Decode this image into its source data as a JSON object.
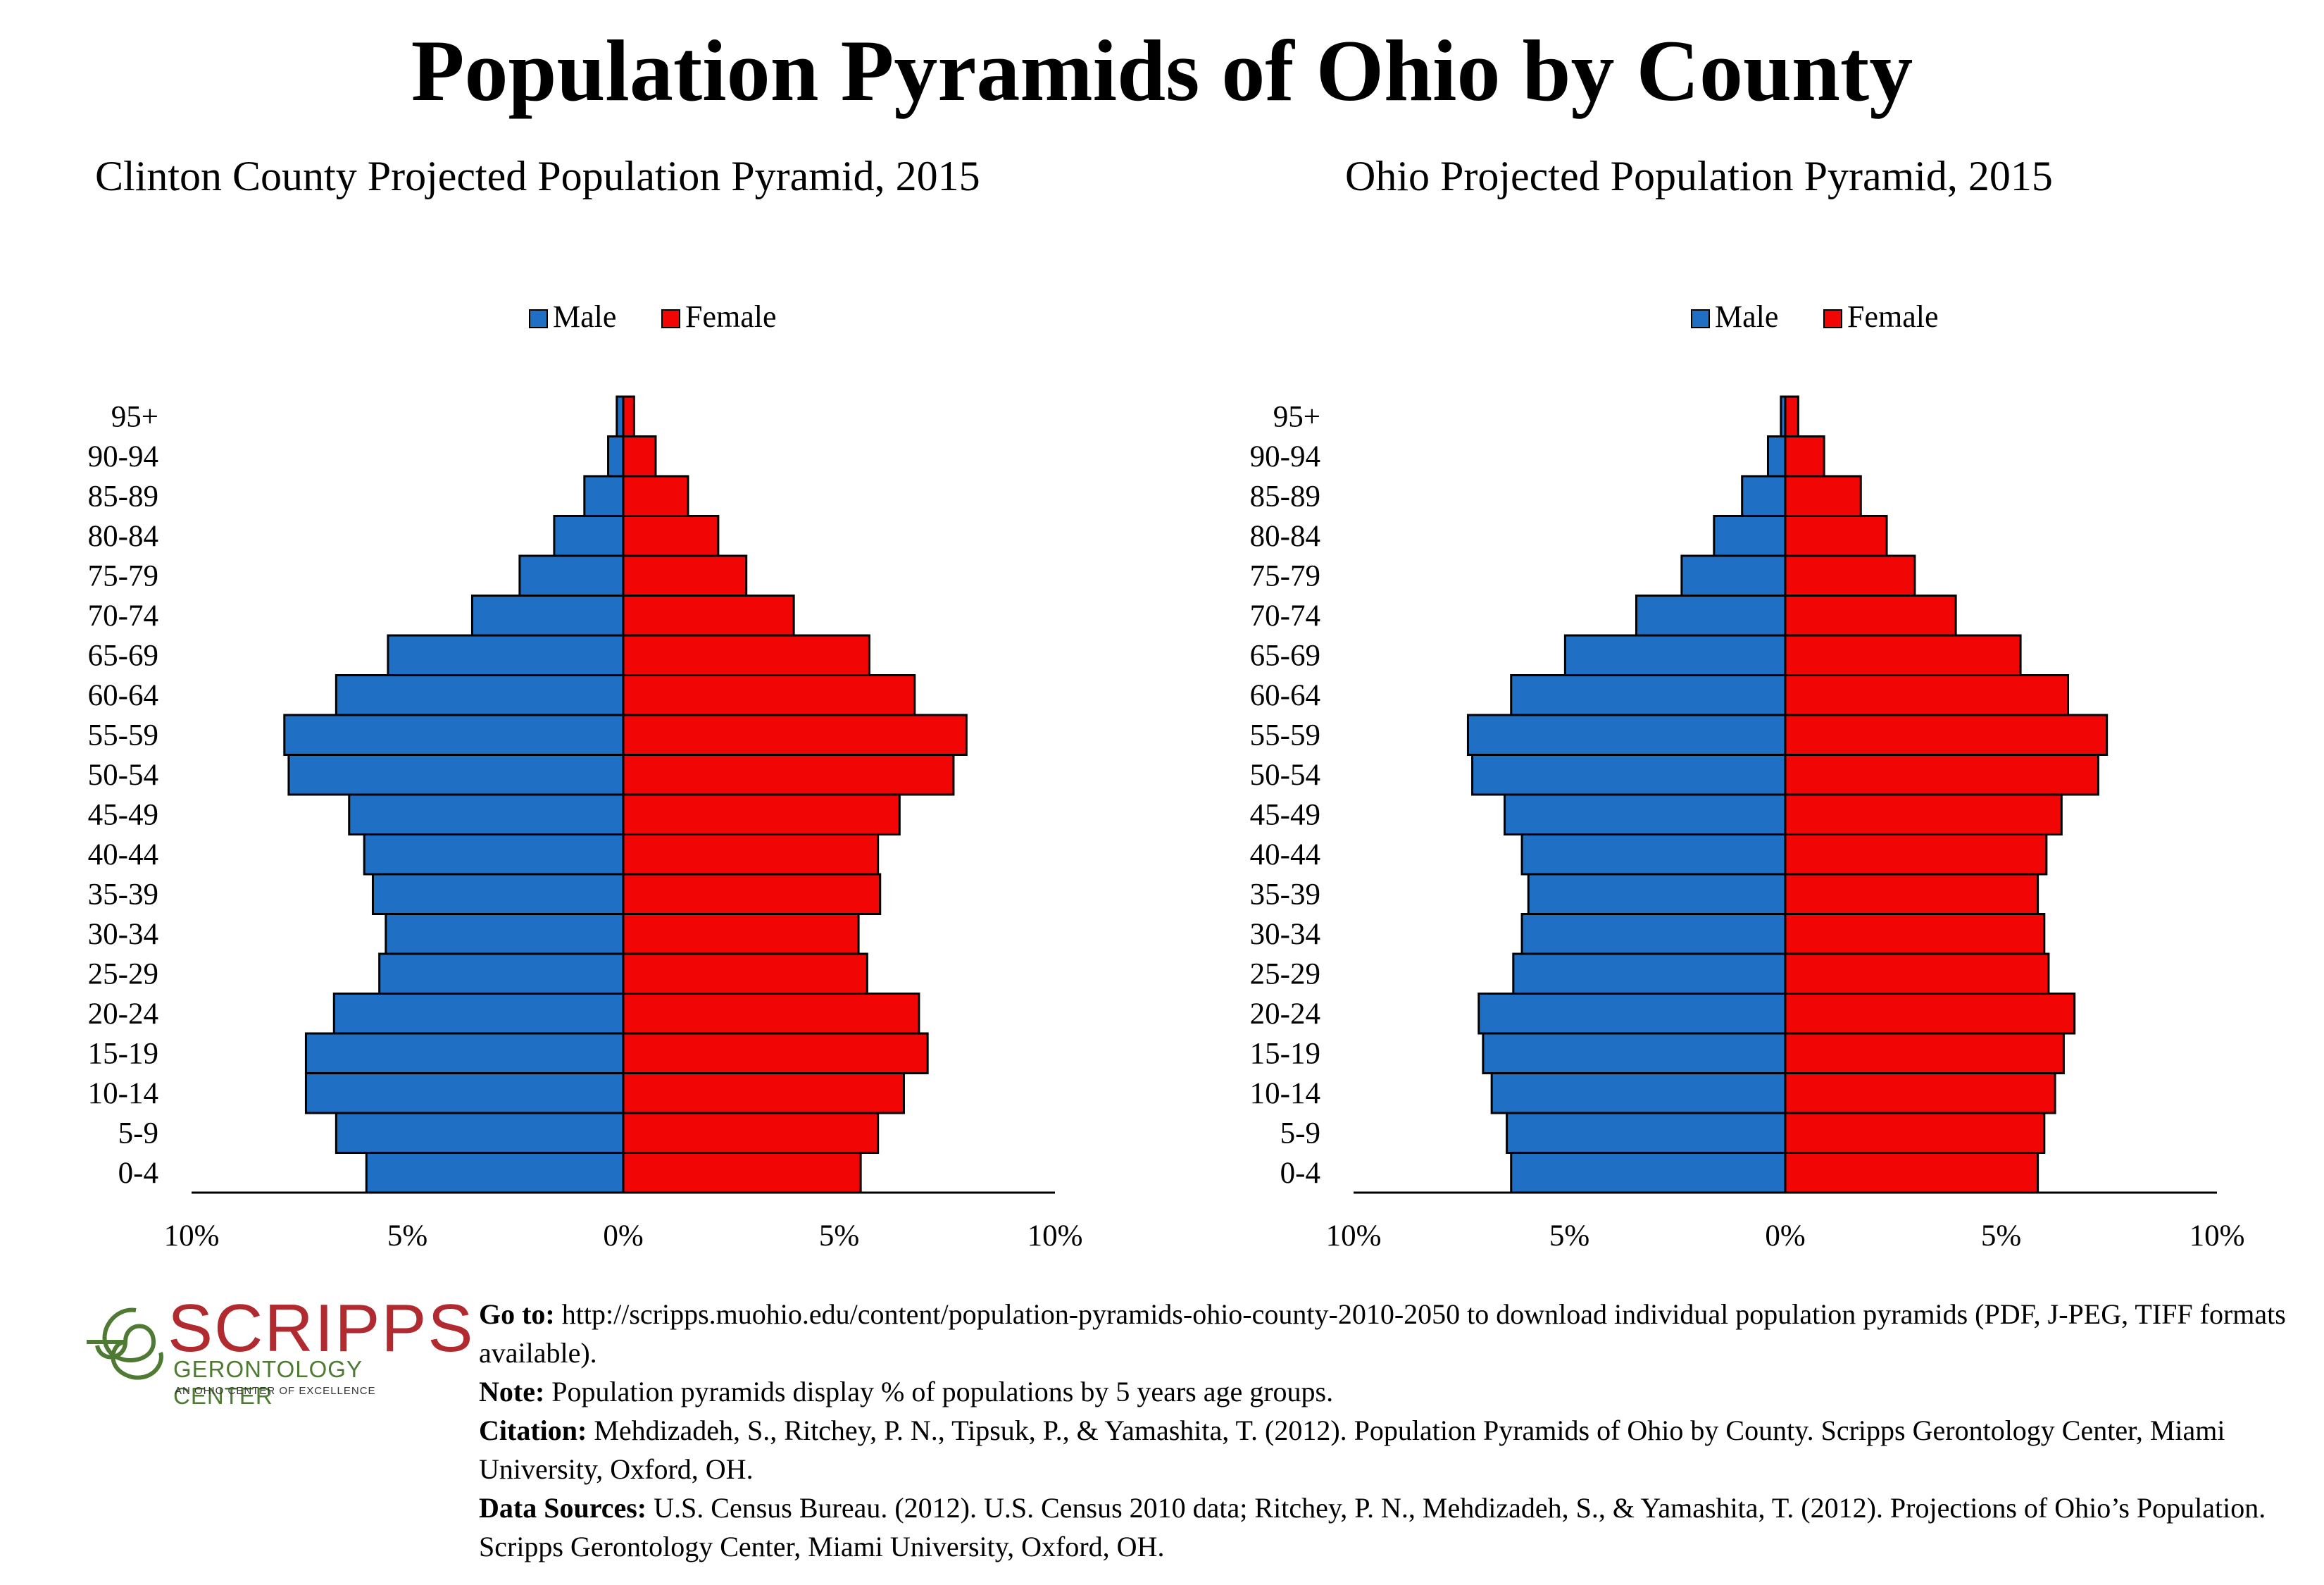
{
  "title": "Population Pyramids of Ohio by County",
  "legend": {
    "male": "Male",
    "female": "Female"
  },
  "colors": {
    "male": "#1f6fc5",
    "female": "#f20505",
    "outline": "#000000"
  },
  "x_tick_labels": [
    "10%",
    "5%",
    "0%",
    "5%",
    "10%"
  ],
  "chart_data": [
    {
      "type": "bar",
      "title": "Clinton County Projected Population Pyramid, 2015",
      "categories": [
        "95+",
        "90-94",
        "85-89",
        "80-84",
        "75-79",
        "70-74",
        "65-69",
        "60-64",
        "55-59",
        "50-54",
        "45-49",
        "40-44",
        "35-39",
        "30-34",
        "25-29",
        "20-24",
        "15-19",
        "10-14",
        "5-9",
        "0-4"
      ],
      "series": [
        {
          "name": "Male",
          "values": [
            0.15,
            0.35,
            0.9,
            1.6,
            2.4,
            3.5,
            5.45,
            6.65,
            7.85,
            7.75,
            6.35,
            6.0,
            5.8,
            5.5,
            5.65,
            6.7,
            7.35,
            7.35,
            6.65,
            5.95
          ]
        },
        {
          "name": "Female",
          "values": [
            0.25,
            0.75,
            1.5,
            2.2,
            2.85,
            3.95,
            5.7,
            6.75,
            7.95,
            7.65,
            6.4,
            5.9,
            5.95,
            5.45,
            5.65,
            6.85,
            7.05,
            6.5,
            5.9,
            5.5
          ]
        }
      ],
      "xlim": [
        -10,
        10
      ],
      "xticks": [
        -10,
        -5,
        0,
        5,
        10
      ],
      "legend_position": "top-center",
      "grid": false
    },
    {
      "type": "bar",
      "title": "Ohio Projected Population Pyramid, 2015",
      "categories": [
        "95+",
        "90-94",
        "85-89",
        "80-84",
        "75-79",
        "70-74",
        "65-69",
        "60-64",
        "55-59",
        "50-54",
        "45-49",
        "40-44",
        "35-39",
        "30-34",
        "25-29",
        "20-24",
        "15-19",
        "10-14",
        "5-9",
        "0-4"
      ],
      "series": [
        {
          "name": "Male",
          "values": [
            0.1,
            0.4,
            1.0,
            1.65,
            2.4,
            3.45,
            5.1,
            6.35,
            7.35,
            7.25,
            6.5,
            6.1,
            5.95,
            6.1,
            6.3,
            7.1,
            7.0,
            6.8,
            6.45,
            6.35
          ]
        },
        {
          "name": "Female",
          "values": [
            0.3,
            0.9,
            1.75,
            2.35,
            3.0,
            3.95,
            5.45,
            6.55,
            7.45,
            7.25,
            6.4,
            6.05,
            5.85,
            6.0,
            6.1,
            6.7,
            6.45,
            6.25,
            6.0,
            5.85
          ]
        }
      ],
      "xlim": [
        -10,
        10
      ],
      "xticks": [
        -10,
        -5,
        0,
        5,
        10
      ],
      "legend_position": "top-center",
      "grid": false
    }
  ],
  "logo": {
    "name": "SCRIPPS",
    "subtitle": "GERONTOLOGY CENTER",
    "tagline": "AN OHIO CENTER OF EXCELLENCE"
  },
  "notes": {
    "goto_label": "Go to:",
    "goto_text": "http://scripps.muohio.edu/content/population-pyramids-ohio-county-2010-2050 to download individual population pyramids (PDF, J-PEG, TIFF formats available).",
    "note_label": "Note:",
    "note_text": "Population pyramids display % of populations by 5 years age groups.",
    "citation_label": "Citation:",
    "citation_text": "Mehdizadeh, S., Ritchey, P. N., Tipsuk, P., & Yamashita, T. (2012). Population Pyramids of Ohio by County. Scripps Gerontology Center, Miami University, Oxford, OH.",
    "sources_label": "Data Sources:",
    "sources_text": "U.S. Census Bureau. (2012). U.S. Census 2010 data; Ritchey, P. N., Mehdizadeh, S., & Yamashita, T. (2012). Projections of Ohio’s Population. Scripps Gerontology Center, Miami University, Oxford, OH."
  }
}
